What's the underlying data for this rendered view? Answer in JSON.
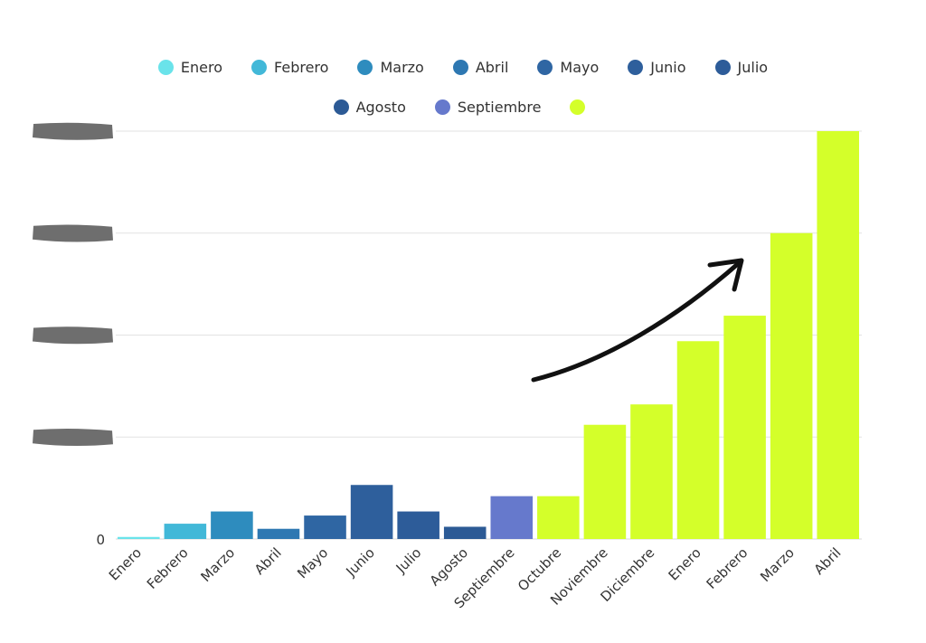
{
  "chart_data": {
    "type": "bar",
    "title": "",
    "xlabel": "",
    "ylabel": "",
    "categories": [
      "Enero",
      "Febrero",
      "Marzo",
      "Abril",
      "Mayo",
      "Junio",
      "Julio",
      "Agosto",
      "Septiembre",
      "Octubre",
      "Noviembre",
      "Diciembre",
      "Enero",
      "Febrero",
      "Marzo",
      "Abril"
    ],
    "values": [
      0.02,
      0.15,
      0.27,
      0.1,
      0.23,
      0.53,
      0.27,
      0.12,
      0.42,
      0.42,
      1.12,
      1.32,
      1.94,
      2.19,
      3.0,
      4.0
    ],
    "value_units_note": "",
    "colors": [
      "#6ae3ea",
      "#42b8d8",
      "#2e8cbe",
      "#2e78b2",
      "#2f66a3",
      "#2e5f9c",
      "#2d5c99",
      "#2c5a95",
      "#6679cc",
      "#d4ff2a",
      "#d4ff2a",
      "#d4ff2a",
      "#d4ff2a",
      "#d4ff2a",
      "#d4ff2a",
      "#d4ff2a"
    ],
    "ylim": [
      0,
      4
    ],
    "yticks": [
      0,
      1,
      2,
      3,
      4
    ],
    "ytick_labels": [
      "0",
      "",
      "",
      "",
      ""
    ],
    "ytick_labels_redacted": true,
    "grid": true,
    "legend_position": "top",
    "legend": [
      {
        "label": "Enero",
        "color": "#6ae3ea"
      },
      {
        "label": "Febrero",
        "color": "#42b8d8"
      },
      {
        "label": "Marzo",
        "color": "#2e8cbe"
      },
      {
        "label": "Abril",
        "color": "#2e78b2"
      },
      {
        "label": "Mayo",
        "color": "#2f66a3"
      },
      {
        "label": "Junio",
        "color": "#2e5f9c"
      },
      {
        "label": "Julio",
        "color": "#2d5c99"
      },
      {
        "label": "Agosto",
        "color": "#2c5a95"
      },
      {
        "label": "Septiembre",
        "color": "#6679cc"
      },
      {
        "label": "",
        "color": "#d4ff2a"
      }
    ],
    "annotations": [
      {
        "type": "arrow",
        "meaning": "upward trend"
      }
    ]
  }
}
